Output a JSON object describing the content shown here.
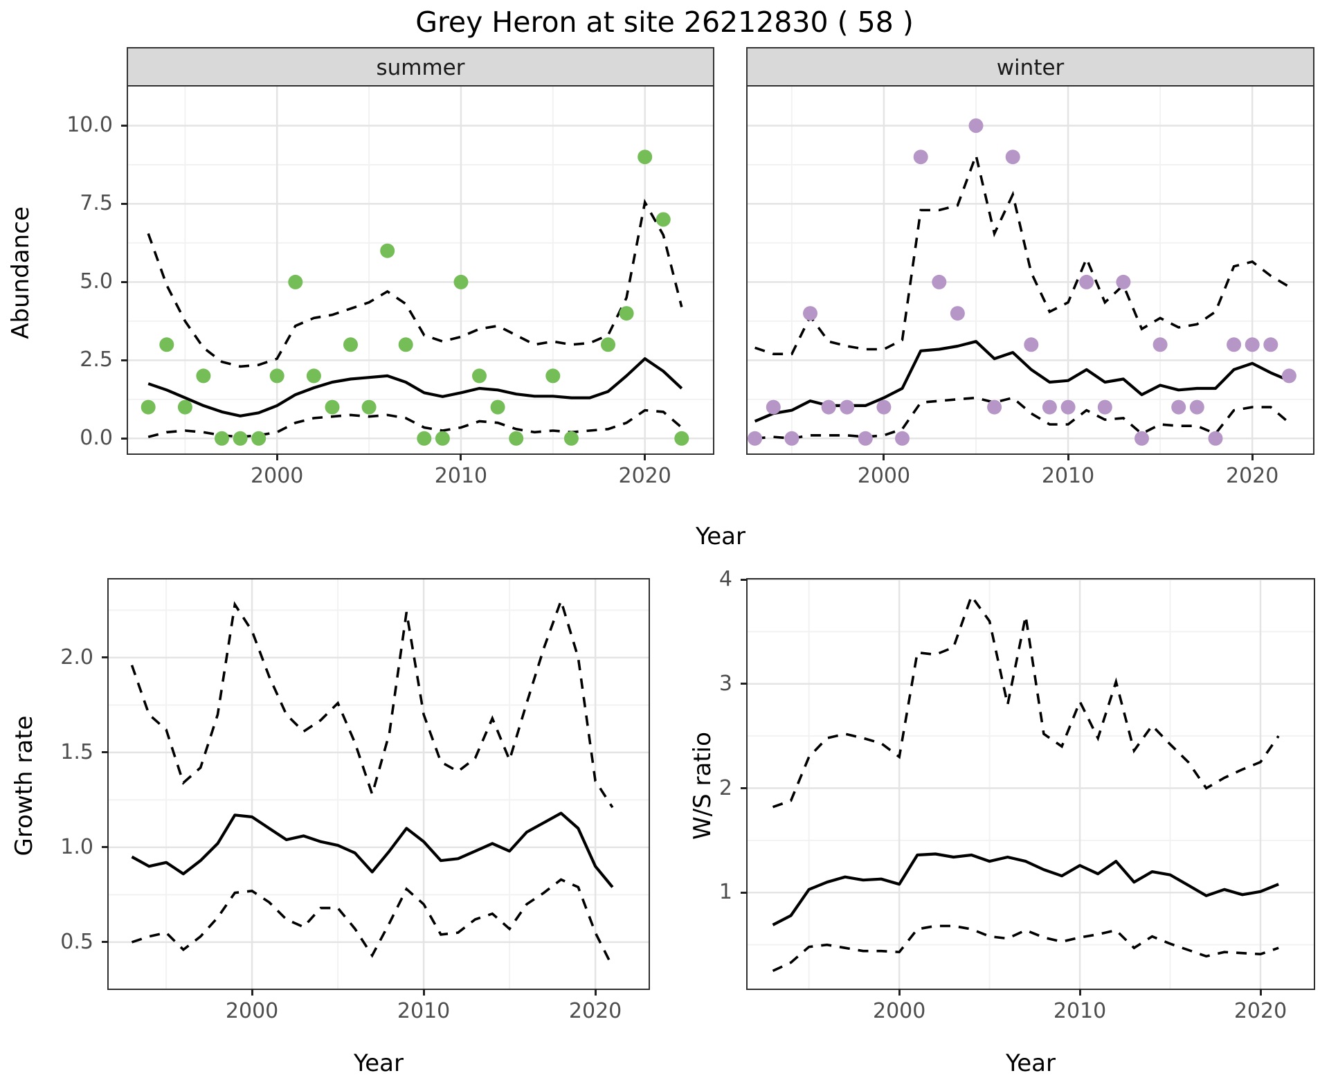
{
  "title": "Grey Heron at site 26212830 ( 58 )",
  "colors": {
    "summer_points": "#74bd57",
    "winter_points": "#b695c7",
    "line": "#000000",
    "grid_major": "#e4e4e4",
    "grid_minor": "#f2f2f2",
    "strip_bg": "#d9d9d9",
    "tick_text": "#4d4d4d"
  },
  "chart_data": [
    {
      "id": "abundance-summer",
      "type": "scatter",
      "facet_label": "summer",
      "xlabel": "Year",
      "ylabel": "Abundance",
      "xlim": [
        1991.9,
        2023.7
      ],
      "ylim": [
        -0.48,
        11.25
      ],
      "xticks": [
        2000,
        2010,
        2020
      ],
      "xtick_labels": [
        "2000",
        "2010",
        "2020"
      ],
      "xticks_minor": [
        1995,
        2005,
        2015
      ],
      "yticks": [
        0.0,
        2.5,
        5.0,
        7.5,
        10.0
      ],
      "ytick_labels": [
        "0.0",
        "2.5",
        "5.0",
        "7.5",
        "10.0"
      ],
      "yticks_minor": [
        1.25,
        3.75,
        6.25,
        8.75
      ],
      "point_color": "#74bd57",
      "years": [
        1993,
        1994,
        1995,
        1996,
        1997,
        1998,
        1999,
        2000,
        2001,
        2002,
        2003,
        2004,
        2005,
        2006,
        2007,
        2008,
        2009,
        2010,
        2011,
        2012,
        2013,
        2014,
        2015,
        2016,
        2017,
        2018,
        2019,
        2020,
        2021,
        2022
      ],
      "points": [
        1,
        3,
        1,
        2,
        0,
        0,
        0,
        2,
        5,
        2,
        1,
        3,
        1,
        6,
        3,
        0,
        0,
        5,
        2,
        1,
        0,
        null,
        2,
        0,
        null,
        3,
        4,
        9,
        7,
        0
      ],
      "fit": [
        1.75,
        1.55,
        1.3,
        1.05,
        0.85,
        0.72,
        0.82,
        1.05,
        1.4,
        1.62,
        1.8,
        1.9,
        1.95,
        2.0,
        1.8,
        1.46,
        1.34,
        1.46,
        1.6,
        1.55,
        1.42,
        1.35,
        1.35,
        1.3,
        1.3,
        1.5,
        2.0,
        2.55,
        2.15,
        1.6
      ],
      "upper": [
        6.55,
        4.9,
        3.75,
        2.9,
        2.45,
        2.3,
        2.35,
        2.55,
        3.6,
        3.85,
        3.95,
        4.15,
        4.35,
        4.7,
        4.3,
        3.3,
        3.1,
        3.25,
        3.5,
        3.6,
        3.3,
        3.0,
        3.1,
        3.0,
        3.05,
        3.3,
        4.5,
        7.55,
        6.5,
        4.2
      ],
      "lower": [
        0.05,
        0.2,
        0.25,
        0.2,
        0.1,
        0.05,
        0.1,
        0.2,
        0.5,
        0.65,
        0.7,
        0.75,
        0.7,
        0.75,
        0.65,
        0.35,
        0.25,
        0.35,
        0.55,
        0.5,
        0.3,
        0.2,
        0.25,
        0.2,
        0.25,
        0.3,
        0.5,
        0.9,
        0.85,
        0.35
      ]
    },
    {
      "id": "abundance-winter",
      "type": "scatter",
      "facet_label": "winter",
      "xlabel": "Year",
      "ylabel": "Abundance",
      "xlim": [
        1992.6,
        2023.3
      ],
      "ylim": [
        -0.48,
        11.25
      ],
      "xticks": [
        2000,
        2010,
        2020
      ],
      "xtick_labels": [
        "2000",
        "2010",
        "2020"
      ],
      "xticks_minor": [
        1995,
        2005,
        2015
      ],
      "yticks": [
        0.0,
        2.5,
        5.0,
        7.5,
        10.0
      ],
      "ytick_labels": [
        "0.0",
        "2.5",
        "5.0",
        "7.5",
        "10.0"
      ],
      "yticks_minor": [
        1.25,
        3.75,
        6.25,
        8.75
      ],
      "point_color": "#b695c7",
      "years": [
        1993,
        1994,
        1995,
        1996,
        1997,
        1998,
        1999,
        2000,
        2001,
        2002,
        2003,
        2004,
        2005,
        2006,
        2007,
        2008,
        2009,
        2010,
        2011,
        2012,
        2013,
        2014,
        2015,
        2016,
        2017,
        2018,
        2019,
        2020,
        2021,
        2022
      ],
      "points": [
        0,
        1,
        0,
        4,
        1,
        1,
        0,
        1,
        0,
        9,
        5,
        4,
        10,
        1,
        9,
        3,
        1,
        1,
        5,
        1,
        5,
        0,
        3,
        1,
        1,
        0,
        3,
        3,
        3,
        2
      ],
      "fit": [
        0.55,
        0.8,
        0.9,
        1.2,
        1.05,
        1.05,
        1.05,
        1.3,
        1.6,
        2.8,
        2.85,
        2.95,
        3.1,
        2.55,
        2.75,
        2.2,
        1.8,
        1.85,
        2.2,
        1.8,
        1.9,
        1.4,
        1.7,
        1.55,
        1.6,
        1.6,
        2.2,
        2.4,
        2.1,
        1.85
      ],
      "upper": [
        2.9,
        2.7,
        2.7,
        3.9,
        3.1,
        2.95,
        2.85,
        2.85,
        3.15,
        7.3,
        7.3,
        7.45,
        9.05,
        6.55,
        7.8,
        5.3,
        4.05,
        4.35,
        5.75,
        4.35,
        4.9,
        3.5,
        3.85,
        3.55,
        3.65,
        4.05,
        5.5,
        5.65,
        5.2,
        4.85
      ],
      "lower": [
        0.0,
        0.05,
        0.0,
        0.1,
        0.1,
        0.1,
        0.05,
        0.1,
        0.3,
        1.15,
        1.2,
        1.25,
        1.3,
        1.15,
        1.3,
        0.8,
        0.45,
        0.45,
        0.9,
        0.6,
        0.65,
        0.15,
        0.45,
        0.4,
        0.4,
        0.15,
        0.9,
        1.0,
        1.0,
        0.5
      ]
    },
    {
      "id": "growth-rate",
      "type": "line",
      "facet_label": "",
      "xlabel": "Year",
      "ylabel": "Growth rate",
      "xlim": [
        1991.65,
        2023.1
      ],
      "ylim": [
        0.255,
        2.412
      ],
      "xticks": [
        2000,
        2010,
        2020
      ],
      "xtick_labels": [
        "2000",
        "2010",
        "2020"
      ],
      "xticks_minor": [
        1995,
        2005,
        2015
      ],
      "yticks": [
        0.5,
        1.0,
        1.5,
        2.0
      ],
      "ytick_labels": [
        "0.5",
        "1.0",
        "1.5",
        "2.0"
      ],
      "yticks_minor": [
        0.75,
        1.25,
        1.75,
        2.25
      ],
      "point_color": null,
      "years": [
        1993,
        1994,
        1995,
        1996,
        1997,
        1998,
        1999,
        2000,
        2001,
        2002,
        2003,
        2004,
        2005,
        2006,
        2007,
        2008,
        2009,
        2010,
        2011,
        2012,
        2013,
        2014,
        2015,
        2016,
        2017,
        2018,
        2019,
        2020,
        2021
      ],
      "points": null,
      "fit": [
        0.95,
        0.9,
        0.92,
        0.86,
        0.93,
        1.02,
        1.17,
        1.16,
        1.1,
        1.04,
        1.06,
        1.03,
        1.01,
        0.97,
        0.87,
        0.98,
        1.1,
        1.03,
        0.93,
        0.94,
        0.98,
        1.02,
        0.98,
        1.08,
        1.13,
        1.18,
        1.1,
        0.9,
        0.79
      ],
      "upper": [
        1.96,
        1.7,
        1.62,
        1.34,
        1.42,
        1.7,
        2.28,
        2.14,
        1.9,
        1.7,
        1.61,
        1.67,
        1.76,
        1.55,
        1.28,
        1.6,
        2.24,
        1.7,
        1.45,
        1.4,
        1.47,
        1.68,
        1.46,
        1.76,
        2.05,
        2.3,
        2.0,
        1.35,
        1.21
      ],
      "lower": [
        0.5,
        0.53,
        0.55,
        0.46,
        0.53,
        0.63,
        0.76,
        0.77,
        0.71,
        0.62,
        0.58,
        0.68,
        0.68,
        0.57,
        0.43,
        0.6,
        0.78,
        0.7,
        0.54,
        0.55,
        0.62,
        0.65,
        0.57,
        0.7,
        0.76,
        0.83,
        0.79,
        0.55,
        0.37
      ]
    },
    {
      "id": "ws-ratio",
      "type": "line",
      "facet_label": "",
      "xlabel": "Year",
      "ylabel": "W/S ratio",
      "xlim": [
        1991.6,
        2022.95
      ],
      "ylim": [
        0.08,
        4.0
      ],
      "xticks": [
        2000,
        2010,
        2020
      ],
      "xtick_labels": [
        "2000",
        "2010",
        "2020"
      ],
      "xticks_minor": [
        1995,
        2005,
        2015
      ],
      "yticks": [
        1,
        2,
        3,
        4
      ],
      "ytick_labels": [
        "1",
        "2",
        "3",
        "4"
      ],
      "yticks_minor": [
        0.5,
        1.5,
        2.5,
        3.5
      ],
      "point_color": null,
      "years": [
        1993,
        1994,
        1995,
        1996,
        1997,
        1998,
        1999,
        2000,
        2001,
        2002,
        2003,
        2004,
        2005,
        2006,
        2007,
        2008,
        2009,
        2010,
        2011,
        2012,
        2013,
        2014,
        2015,
        2016,
        2017,
        2018,
        2019,
        2020,
        2021
      ],
      "points": null,
      "fit": [
        0.69,
        0.78,
        1.03,
        1.1,
        1.15,
        1.12,
        1.13,
        1.08,
        1.36,
        1.37,
        1.34,
        1.36,
        1.3,
        1.34,
        1.3,
        1.22,
        1.16,
        1.26,
        1.18,
        1.3,
        1.1,
        1.2,
        1.17,
        1.07,
        0.97,
        1.03,
        0.98,
        1.01,
        1.08
      ],
      "upper": [
        1.82,
        1.88,
        2.3,
        2.48,
        2.52,
        2.48,
        2.43,
        2.3,
        3.3,
        3.28,
        3.35,
        3.84,
        3.6,
        2.8,
        3.65,
        2.52,
        2.4,
        2.83,
        2.48,
        3.02,
        2.36,
        2.6,
        2.42,
        2.25,
        2.0,
        2.1,
        2.18,
        2.25,
        2.5
      ],
      "lower": [
        0.25,
        0.33,
        0.48,
        0.5,
        0.47,
        0.44,
        0.44,
        0.43,
        0.65,
        0.68,
        0.68,
        0.65,
        0.58,
        0.56,
        0.64,
        0.57,
        0.53,
        0.57,
        0.6,
        0.64,
        0.47,
        0.58,
        0.51,
        0.45,
        0.39,
        0.43,
        0.42,
        0.41,
        0.47
      ]
    }
  ]
}
